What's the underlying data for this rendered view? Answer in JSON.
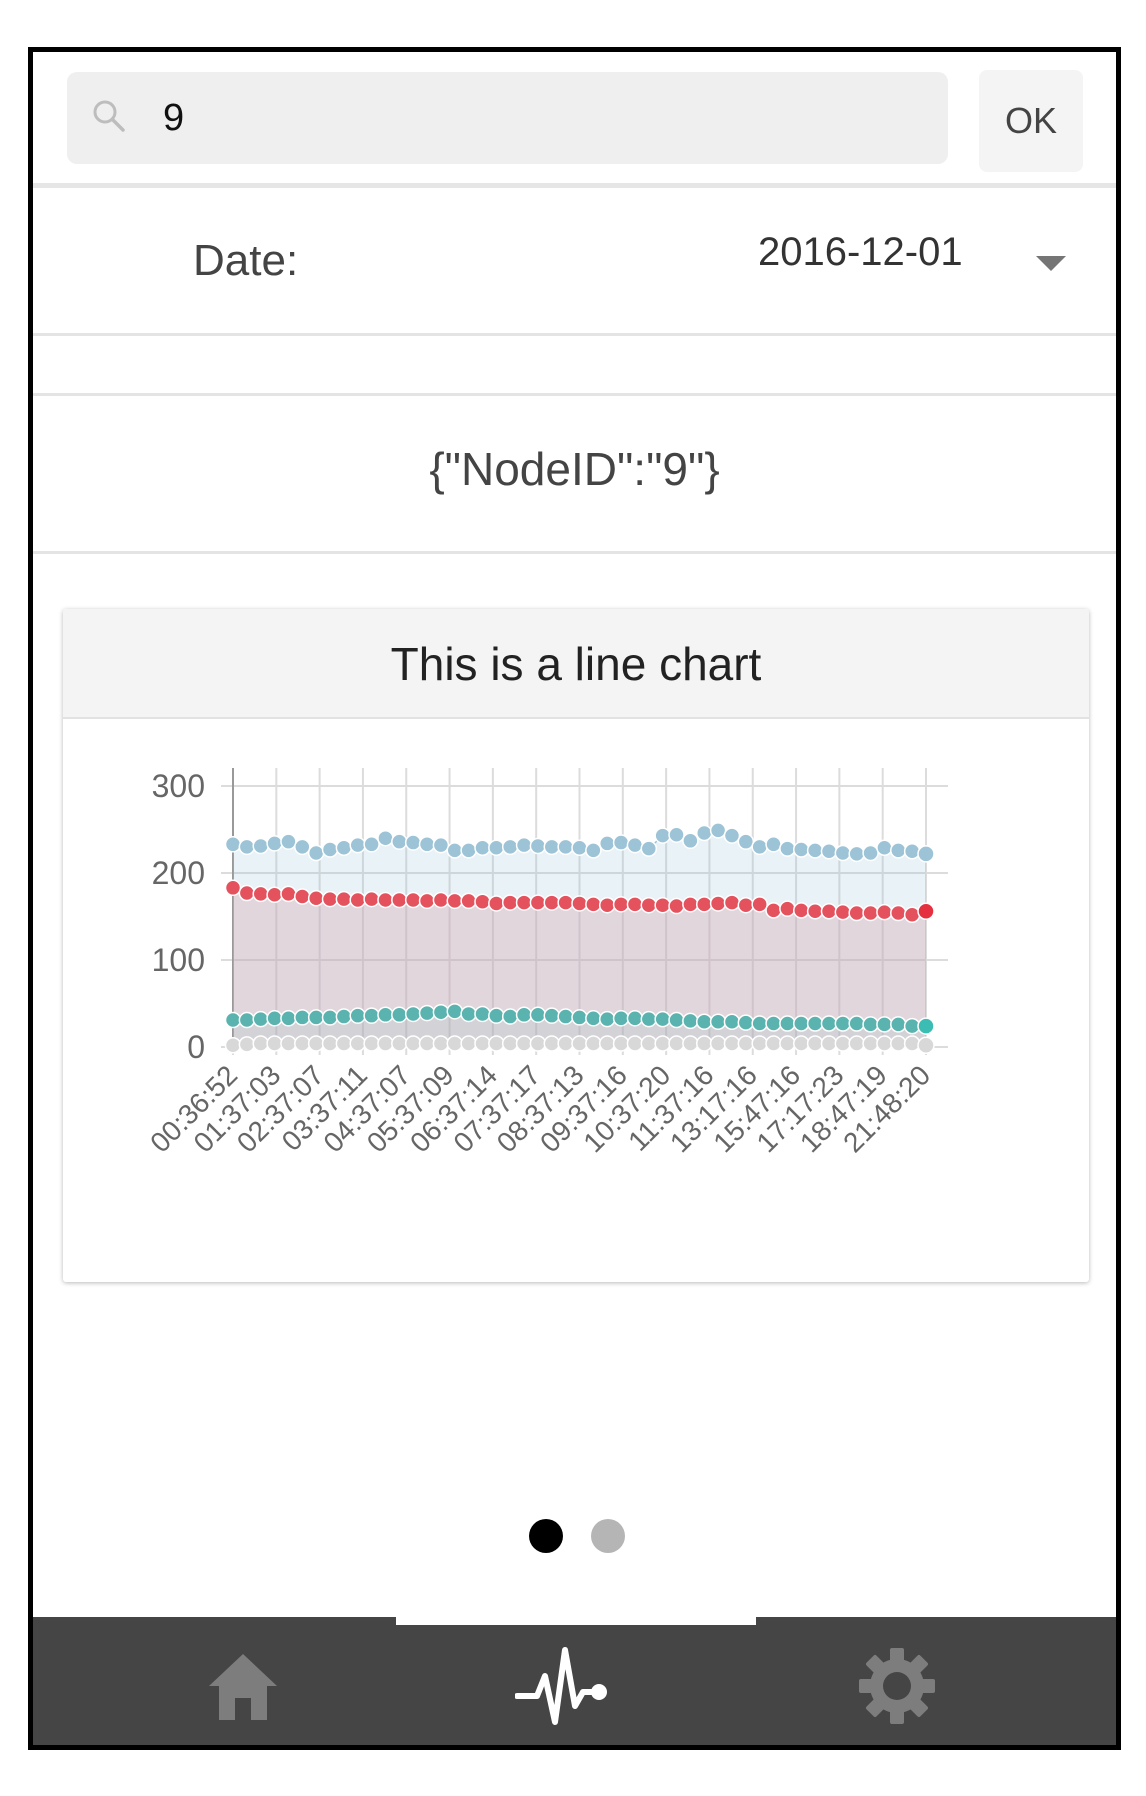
{
  "search": {
    "value": "9",
    "placeholder": ""
  },
  "ok_label": "OK",
  "date": {
    "label": "Date:",
    "value": "2016-12-01"
  },
  "query": "{\"NodeID\":\"9\"}",
  "card": {
    "title": "This is a line chart"
  },
  "pager": {
    "count": 2,
    "active": 1
  },
  "nav": {
    "items": [
      "home-icon",
      "pulse-icon",
      "gear-icon"
    ],
    "active": 1
  },
  "colors": {
    "nav_bg": "#454545",
    "series_blue": "#9cc3d6",
    "series_red": "#e4525e",
    "series_teal": "#5ab3ae",
    "series_gray": "#d8d8d8"
  },
  "chart_data": {
    "type": "line",
    "title": "",
    "xlabel": "",
    "ylabel": "",
    "ylim": [
      0,
      300
    ],
    "yticks": [
      0,
      100,
      200,
      300
    ],
    "x_tick_labels": [
      "00:36:52",
      "01:37:03",
      "02:37:07",
      "03:37:11",
      "04:37:07",
      "05:37:09",
      "06:37:14",
      "07:37:17",
      "08:37:13",
      "09:37:16",
      "10:37:20",
      "11:37:16",
      "13:17:16",
      "15:47:16",
      "17:17:23",
      "18:47:19",
      "21:48:20"
    ],
    "grid": true,
    "area_fill": true,
    "series": [
      {
        "values": [
          233,
          230,
          231,
          234,
          236,
          230,
          223,
          227,
          229,
          232,
          233,
          240,
          236,
          235,
          233,
          232,
          226,
          226,
          229,
          229,
          230,
          232,
          231,
          230,
          230,
          229,
          226,
          234,
          235,
          232,
          228,
          243,
          244,
          237,
          246,
          249,
          243,
          236,
          230,
          233,
          228,
          227,
          226,
          225,
          223,
          222,
          223,
          229,
          226,
          225,
          222
        ]
      },
      {
        "values": [
          183,
          177,
          176,
          175,
          176,
          173,
          171,
          170,
          170,
          169,
          170,
          169,
          169,
          169,
          168,
          169,
          168,
          168,
          167,
          165,
          166,
          166,
          166,
          166,
          166,
          165,
          164,
          163,
          164,
          164,
          163,
          163,
          162,
          164,
          164,
          165,
          166,
          163,
          164,
          157,
          159,
          157,
          156,
          156,
          155,
          154,
          154,
          155,
          154,
          152,
          156
        ]
      },
      {
        "values": [
          31,
          31,
          32,
          33,
          33,
          34,
          34,
          34,
          35,
          36,
          36,
          37,
          37,
          38,
          39,
          40,
          41,
          38,
          38,
          36,
          35,
          37,
          37,
          36,
          35,
          34,
          33,
          32,
          33,
          33,
          32,
          32,
          31,
          30,
          29,
          29,
          29,
          28,
          27,
          27,
          27,
          27,
          27,
          27,
          27,
          27,
          26,
          26,
          26,
          24,
          24
        ]
      },
      {
        "values": [
          2,
          3,
          4,
          4,
          4,
          4,
          4,
          4,
          4,
          4,
          4,
          4,
          4,
          4,
          4,
          4,
          4,
          4,
          4,
          4,
          4,
          4,
          4,
          4,
          4,
          4,
          4,
          4,
          4,
          4,
          4,
          4,
          4,
          4,
          4,
          4,
          4,
          4,
          4,
          4,
          4,
          4,
          4,
          4,
          4,
          4,
          4,
          4,
          4,
          4,
          2
        ]
      }
    ]
  }
}
